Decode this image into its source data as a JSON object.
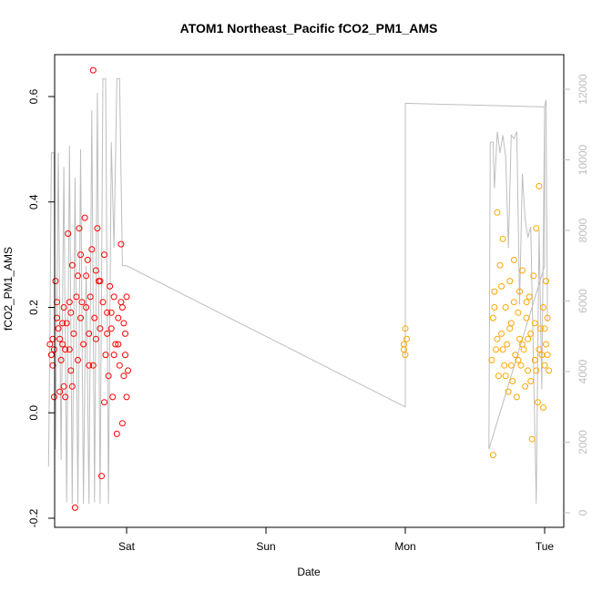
{
  "chart_data": {
    "type": "scatter",
    "title": "ATOM1 Northeast_Pacific fCO2_PM1_AMS",
    "xlabel": "Date",
    "ylabel": "fCO2_PM1_AMS",
    "x_ticks": [
      "Sat",
      "Sun",
      "Mon",
      "Tue"
    ],
    "y_ticks": [
      "-0.2",
      "0.0",
      "0.2",
      "0.4",
      "0.6"
    ],
    "y2_ticks": [
      "0",
      "2000",
      "4000",
      "6000",
      "8000",
      "10000",
      "12000"
    ],
    "ylim": [
      -0.2,
      0.67
    ],
    "y2lim": [
      0,
      12500
    ],
    "colors": {
      "early_points": "#ff0000",
      "late_points": "#ffa500",
      "altitude_line": "#bebebe",
      "frame": "#000000"
    },
    "series": [
      {
        "values": [
          [
            -0.55,
            0.13
          ],
          [
            -0.54,
            0.11
          ],
          [
            -0.53,
            0.09
          ],
          [
            -0.52,
            0.12
          ],
          [
            -0.51,
            0.25
          ],
          [
            -0.5,
            0.18
          ],
          [
            -0.5,
            0.21
          ],
          [
            -0.49,
            0.16
          ],
          [
            -0.48,
            0.14
          ],
          [
            -0.47,
            0.1
          ],
          [
            -0.46,
            0.13
          ],
          [
            -0.45,
            0.05
          ],
          [
            -0.45,
            0.2
          ],
          [
            -0.44,
            0.03
          ],
          [
            -0.43,
            0.17
          ],
          [
            -0.42,
            0.34
          ],
          [
            -0.41,
            0.12
          ],
          [
            -0.4,
            0.08
          ],
          [
            -0.4,
            0.19
          ],
          [
            -0.39,
            0.28
          ],
          [
            -0.38,
            0.15
          ],
          [
            -0.37,
            -0.18
          ],
          [
            -0.36,
            0.22
          ],
          [
            -0.35,
            0.1
          ],
          [
            -0.34,
            0.35
          ],
          [
            -0.33,
            0.3
          ],
          [
            -0.32,
            0.21
          ],
          [
            -0.31,
            0.13
          ],
          [
            -0.3,
            0.37
          ],
          [
            -0.29,
            0.26
          ],
          [
            -0.28,
            0.29
          ],
          [
            -0.27,
            0.09
          ],
          [
            -0.26,
            0.22
          ],
          [
            -0.25,
            0.31
          ],
          [
            -0.24,
            0.65
          ],
          [
            -0.23,
            0.18
          ],
          [
            -0.22,
            0.27
          ],
          [
            -0.21,
            0.35
          ],
          [
            -0.2,
            0.25
          ],
          [
            -0.19,
            0.16
          ],
          [
            -0.18,
            -0.12
          ],
          [
            -0.17,
            0.21
          ],
          [
            -0.16,
            0.3
          ],
          [
            -0.15,
            0.11
          ],
          [
            -0.14,
            0.19
          ],
          [
            -0.13,
            0.07
          ],
          [
            -0.12,
            0.24
          ],
          [
            -0.11,
            0.16
          ],
          [
            -0.1,
            0.03
          ],
          [
            -0.09,
            0.22
          ],
          [
            -0.08,
            0.13
          ],
          [
            -0.07,
            -0.04
          ],
          [
            -0.06,
            0.18
          ],
          [
            -0.05,
            0.09
          ],
          [
            -0.04,
            0.21
          ],
          [
            -0.03,
            -0.02
          ],
          [
            -0.02,
            0.17
          ],
          [
            -0.01,
            0.11
          ],
          [
            0.0,
            0.22
          ],
          [
            0.01,
            0.08
          ],
          [
            -0.53,
            0.14
          ],
          [
            -0.48,
            0.04
          ],
          [
            -0.44,
            0.12
          ],
          [
            -0.39,
            0.05
          ],
          [
            -0.33,
            0.18
          ],
          [
            -0.27,
            0.15
          ],
          [
            -0.22,
            0.14
          ],
          [
            -0.16,
            0.02
          ],
          [
            -0.11,
            0.19
          ],
          [
            -0.06,
            0.13
          ],
          [
            -0.03,
            0.2
          ],
          [
            -0.01,
            0.15
          ],
          [
            -0.52,
            0.03
          ],
          [
            -0.46,
            0.17
          ],
          [
            -0.41,
            0.21
          ],
          [
            -0.35,
            0.26
          ],
          [
            -0.29,
            0.2
          ],
          [
            -0.24,
            0.09
          ],
          [
            -0.19,
            0.25
          ],
          [
            -0.14,
            0.15
          ],
          [
            -0.09,
            0.11
          ],
          [
            -0.04,
            0.32
          ],
          [
            -0.02,
            0.07
          ],
          [
            0.0,
            0.03
          ]
        ]
      },
      {
        "values": [
          [
            1.99,
            0.13
          ],
          [
            2.0,
            0.16
          ],
          [
            2.0,
            0.11
          ],
          [
            2.01,
            0.14
          ],
          [
            1.99,
            0.12
          ],
          [
            2.62,
            0.1
          ],
          [
            2.63,
            0.18
          ],
          [
            2.64,
            0.23
          ],
          [
            2.65,
            0.12
          ],
          [
            2.66,
            0.38
          ],
          [
            2.67,
            0.07
          ],
          [
            2.68,
            0.28
          ],
          [
            2.69,
            0.15
          ],
          [
            2.7,
            0.33
          ],
          [
            2.71,
            0.09
          ],
          [
            2.72,
            0.2
          ],
          [
            2.73,
            0.13
          ],
          [
            2.74,
            0.04
          ],
          [
            2.75,
            0.25
          ],
          [
            2.76,
            0.17
          ],
          [
            2.77,
            0.06
          ],
          [
            2.78,
            0.21
          ],
          [
            2.79,
            0.11
          ],
          [
            2.8,
            0.03
          ],
          [
            2.81,
            0.19
          ],
          [
            2.82,
            0.14
          ],
          [
            2.83,
            0.09
          ],
          [
            2.84,
            0.27
          ],
          [
            2.85,
            0.12
          ],
          [
            2.86,
            0.05
          ],
          [
            2.87,
            0.18
          ],
          [
            2.88,
            0.08
          ],
          [
            2.89,
            0.22
          ],
          [
            2.9,
            0.15
          ],
          [
            2.91,
            -0.05
          ],
          [
            2.92,
            0.26
          ],
          [
            2.93,
            0.1
          ],
          [
            2.94,
            0.35
          ],
          [
            2.95,
            0.02
          ],
          [
            2.96,
            0.43
          ],
          [
            2.97,
            0.16
          ],
          [
            2.98,
            0.11
          ],
          [
            2.99,
            0.2
          ],
          [
            3.0,
            0.09
          ],
          [
            3.01,
            0.13
          ],
          [
            3.02,
            0.18
          ],
          [
            3.03,
            0.08
          ],
          [
            2.63,
            -0.08
          ],
          [
            2.66,
            0.14
          ],
          [
            2.69,
            0.24
          ],
          [
            2.72,
            0.07
          ],
          [
            2.75,
            0.16
          ],
          [
            2.78,
            0.29
          ],
          [
            2.81,
            0.1
          ],
          [
            2.84,
            0.13
          ],
          [
            2.87,
            0.21
          ],
          [
            2.9,
            0.06
          ],
          [
            2.93,
            0.17
          ],
          [
            2.96,
            0.12
          ],
          [
            2.99,
            0.01
          ],
          [
            3.01,
            0.25
          ],
          [
            2.64,
            0.2
          ],
          [
            2.7,
            0.12
          ],
          [
            2.76,
            0.09
          ],
          [
            2.82,
            0.23
          ],
          [
            2.88,
            0.14
          ],
          [
            2.94,
            0.08
          ],
          [
            3.0,
            0.16
          ],
          [
            3.02,
            0.11
          ]
        ]
      },
      {
        "line": true,
        "axis": "right",
        "values": [
          [
            -0.56,
            1300
          ],
          [
            -0.55,
            5000
          ],
          [
            -0.54,
            10200
          ],
          [
            -0.52,
            10200
          ],
          [
            -0.51,
            1800
          ],
          [
            -0.49,
            10200
          ],
          [
            -0.47,
            1500
          ],
          [
            -0.45,
            9800
          ],
          [
            -0.43,
            300
          ],
          [
            -0.41,
            10400
          ],
          [
            -0.39,
            250
          ],
          [
            -0.37,
            9500
          ],
          [
            -0.35,
            250
          ],
          [
            -0.33,
            10300
          ],
          [
            -0.31,
            250
          ],
          [
            -0.29,
            7000
          ],
          [
            -0.27,
            250
          ],
          [
            -0.25,
            11400
          ],
          [
            -0.23,
            300
          ],
          [
            -0.21,
            11900
          ],
          [
            -0.19,
            250
          ],
          [
            -0.17,
            12300
          ],
          [
            -0.15,
            12300
          ],
          [
            -0.13,
            250
          ],
          [
            -0.11,
            10500
          ],
          [
            -0.09,
            7500
          ],
          [
            -0.07,
            12300
          ],
          [
            -0.05,
            12300
          ],
          [
            -0.03,
            7000
          ],
          [
            0.0,
            7000
          ],
          [
            2.0,
            3000
          ],
          [
            2.0,
            11600
          ],
          [
            2.02,
            11600
          ],
          [
            3.0,
            11500
          ],
          [
            3.0,
            7000
          ],
          [
            2.6,
            1800
          ],
          [
            2.61,
            10500
          ],
          [
            2.63,
            10500
          ],
          [
            2.64,
            9200
          ],
          [
            2.66,
            10800
          ],
          [
            2.68,
            10200
          ],
          [
            2.7,
            10700
          ],
          [
            2.72,
            10100
          ],
          [
            2.74,
            7500
          ],
          [
            2.76,
            10700
          ],
          [
            2.78,
            10600
          ],
          [
            2.8,
            10800
          ],
          [
            2.82,
            5900
          ],
          [
            2.84,
            9600
          ],
          [
            2.86,
            8300
          ],
          [
            2.88,
            7800
          ],
          [
            2.9,
            8100
          ],
          [
            2.92,
            4200
          ],
          [
            2.94,
            250
          ],
          [
            2.96,
            8000
          ],
          [
            2.98,
            3500
          ],
          [
            3.0,
            11500
          ],
          [
            3.01,
            11700
          ],
          [
            3.02,
            5400
          ]
        ]
      }
    ]
  }
}
